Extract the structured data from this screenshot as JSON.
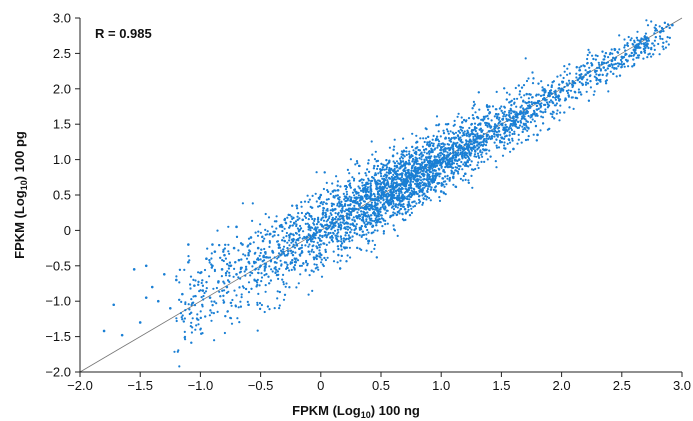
{
  "chart_data": {
    "type": "scatter",
    "title": "",
    "xlabel": "FPKM (Log₁₀) 100 ng",
    "ylabel": "FPKM (Log₁₀) 100 pg",
    "xlabel_parts": {
      "main": "FPKM (Log",
      "sub": "10",
      "rest": ") 100 ng"
    },
    "ylabel_parts": {
      "main": "FPKM (Log",
      "sub": "10",
      "rest": ") 100 pg"
    },
    "annotation": "R = 0.985",
    "xlim": [
      -2.0,
      3.0
    ],
    "ylim": [
      -2.0,
      3.0
    ],
    "x_ticks": [
      "−2.0",
      "−1.5",
      "−1.0",
      "−0.5",
      "0",
      "0.5",
      "1.0",
      "1.5",
      "2.0",
      "2.5",
      "3.0"
    ],
    "x_tick_values": [
      -2.0,
      -1.5,
      -1.0,
      -0.5,
      0,
      0.5,
      1.0,
      1.5,
      2.0,
      2.5,
      3.0
    ],
    "y_ticks": [
      "−2.0",
      "−1.5",
      "−1.0",
      "−0.5",
      "0",
      "0.5",
      "1.0",
      "1.5",
      "2.0",
      "2.5",
      "3.0"
    ],
    "y_tick_values": [
      -2.0,
      -1.5,
      -1.0,
      -0.5,
      0,
      0.5,
      1.0,
      1.5,
      2.0,
      2.5,
      3.0
    ],
    "grid": false,
    "reference_line": {
      "x": [
        -2.0,
        3.0
      ],
      "y": [
        -2.0,
        3.0
      ]
    },
    "point_color": "#1a7fd4",
    "line_color": "#777777",
    "series": [
      {
        "x": [
          -1.8,
          -1.72,
          -1.65,
          -1.55,
          -1.5,
          -1.45,
          -1.4,
          -1.35,
          -1.3,
          -1.25,
          -1.2,
          -1.15,
          -1.1,
          -1.05,
          -1.0,
          -0.98,
          -0.95,
          -0.92,
          -0.9,
          -0.88,
          -0.85,
          -0.82,
          -0.8,
          -0.78,
          -0.75,
          -0.72,
          -0.7,
          -0.68,
          -0.65,
          -0.62,
          -0.6,
          -0.58,
          -0.55,
          -0.52,
          -0.5,
          -0.48,
          -0.45,
          -0.42,
          -0.4,
          -0.38,
          -0.35,
          -0.32,
          -0.3,
          -0.28,
          -0.25,
          -0.22,
          -0.2,
          -0.18,
          -0.15,
          -0.12,
          -0.1,
          -0.08,
          -0.05,
          -0.02,
          0.0,
          0.02,
          0.05,
          0.08,
          0.1,
          0.12,
          0.15,
          0.18,
          0.2,
          0.22,
          0.25,
          0.28,
          0.3,
          0.32,
          0.35,
          0.38,
          0.4,
          0.42,
          0.45,
          0.48,
          0.5,
          0.52,
          0.55,
          0.58,
          0.6,
          0.62,
          0.65,
          0.68,
          0.7,
          0.72,
          0.75,
          0.78,
          0.8,
          0.82,
          0.85,
          0.88,
          0.9,
          0.92,
          0.95,
          0.98,
          1.0,
          1.02,
          1.05,
          1.08,
          1.1,
          1.12,
          1.15,
          1.18,
          1.2,
          1.22,
          1.25,
          1.28,
          1.3,
          1.32,
          1.35,
          1.38,
          1.4,
          1.42,
          1.45,
          1.48,
          1.5,
          1.52,
          1.55,
          1.58,
          1.6,
          1.63,
          1.66,
          1.7,
          1.74,
          1.78,
          1.82,
          1.86,
          1.9,
          1.95,
          2.0,
          2.05,
          2.1,
          2.15,
          2.2,
          2.28,
          2.35,
          2.42,
          2.5,
          2.6,
          2.7,
          2.82,
          2.92,
          -0.3,
          -0.1,
          0.1,
          0.3,
          0.5,
          0.7,
          0.9,
          1.1,
          1.3,
          -0.9,
          -1.1,
          -0.6,
          0.0,
          0.4,
          0.8,
          1.2,
          1.6,
          -1.45,
          -0.7,
          -0.2,
          0.2,
          0.6,
          1.0,
          1.4,
          1.8
        ],
        "y": [
          -1.42,
          -1.05,
          -1.48,
          -0.55,
          -1.3,
          -0.95,
          -0.8,
          -1.0,
          -0.62,
          -1.1,
          -0.7,
          -0.9,
          -0.45,
          -0.78,
          -0.6,
          -0.85,
          -0.4,
          -0.95,
          -0.5,
          -0.3,
          -0.72,
          -0.55,
          -0.35,
          -0.8,
          -0.5,
          -0.25,
          -0.62,
          -0.42,
          -0.2,
          -0.55,
          -0.35,
          -0.1,
          -0.45,
          -0.25,
          -0.5,
          -0.15,
          -0.38,
          -0.05,
          -0.3,
          -0.45,
          -0.2,
          0.05,
          -0.15,
          -0.35,
          -0.05,
          0.1,
          -0.2,
          0.0,
          0.15,
          -0.1,
          0.05,
          0.2,
          -0.05,
          0.12,
          0.0,
          0.25,
          0.08,
          -0.1,
          0.15,
          0.3,
          0.05,
          0.2,
          0.35,
          0.1,
          0.25,
          0.4,
          0.2,
          0.35,
          0.15,
          0.45,
          0.3,
          0.5,
          0.35,
          0.2,
          0.45,
          0.6,
          0.4,
          0.55,
          0.5,
          0.35,
          0.65,
          0.5,
          0.7,
          0.55,
          0.6,
          0.75,
          0.7,
          0.6,
          0.8,
          0.72,
          0.85,
          0.7,
          0.9,
          0.8,
          0.95,
          0.85,
          1.0,
          0.9,
          1.05,
          1.1,
          1.0,
          1.15,
          1.1,
          1.2,
          1.15,
          1.25,
          1.2,
          1.3,
          1.25,
          1.35,
          1.4,
          1.3,
          1.45,
          1.4,
          1.5,
          1.45,
          1.55,
          1.5,
          1.6,
          1.62,
          1.68,
          1.65,
          1.75,
          1.8,
          1.78,
          1.85,
          1.9,
          1.92,
          2.0,
          2.05,
          2.08,
          2.15,
          2.2,
          2.25,
          2.3,
          2.4,
          2.45,
          2.55,
          2.7,
          2.8,
          2.9,
          0.15,
          -0.3,
          0.55,
          -0.05,
          0.85,
          0.3,
          1.2,
          0.75,
          1.6,
          -0.2,
          -0.2,
          -1.05,
          0.5,
          -0.15,
          1.25,
          0.8,
          1.15,
          -0.5,
          0.05,
          0.35,
          -0.25,
          1.05,
          0.55,
          1.75,
          1.35
        ]
      }
    ]
  }
}
